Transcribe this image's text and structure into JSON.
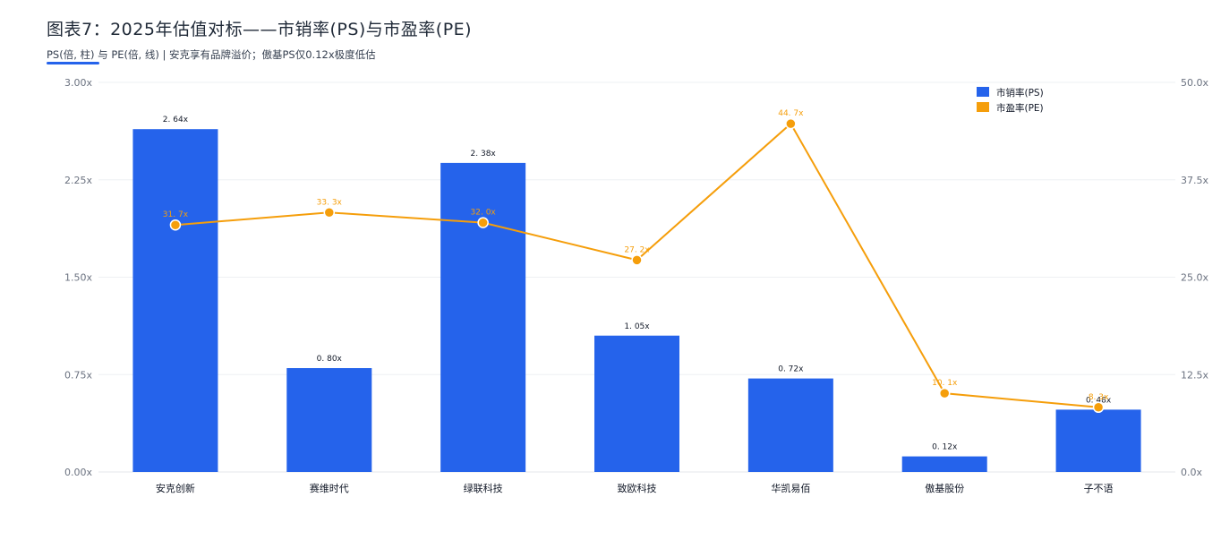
{
  "header": {
    "title": "图表7：2025年估值对标——市销率(PS)与市盈率(PE)",
    "subtitle": "PS(倍, 柱) 与 PE(倍, 线)   |   安克享有品牌溢价；傲基PS仅0.12x极度低估"
  },
  "colors": {
    "accent": "#2563eb",
    "ps": "#2563eb",
    "pe": "#f59e0b"
  },
  "chart_data": {
    "type": "bar",
    "categories": [
      "安克创新",
      "赛维时代",
      "绿联科技",
      "致欧科技",
      "华凯易佰",
      "傲基股份",
      "子不语"
    ],
    "series": [
      {
        "name": "市销率(PS)",
        "type": "bar",
        "axis": "left",
        "values": [
          2.64,
          0.8,
          2.38,
          1.05,
          0.72,
          0.12,
          0.48
        ],
        "labels": [
          "2. 64x",
          "0. 80x",
          "2. 38x",
          "1. 05x",
          "0. 72x",
          "0. 12x",
          "0. 48x"
        ]
      },
      {
        "name": "市盈率(PE)",
        "type": "line",
        "axis": "right",
        "values": [
          31.7,
          33.3,
          32.0,
          27.2,
          44.7,
          10.1,
          8.3
        ],
        "labels": [
          "31. 7x",
          "33. 3x",
          "32. 0x",
          "27. 2x",
          "44. 7x",
          "10. 1x",
          "8. 3x"
        ]
      }
    ],
    "y_left": {
      "min": 0,
      "max": 3.0,
      "ticks": [
        0,
        0.75,
        1.5,
        2.25,
        3.0
      ],
      "tick_labels": [
        "0.00x",
        "0.75x",
        "1.50x",
        "2.25x",
        "3.00x"
      ]
    },
    "y_right": {
      "min": 0,
      "max": 50,
      "ticks": [
        0,
        12.5,
        25,
        37.5,
        50
      ],
      "tick_labels": [
        "0.0x",
        "12.5x",
        "25.0x",
        "37.5x",
        "50.0x"
      ]
    },
    "grid": true,
    "legend": "top-right"
  }
}
